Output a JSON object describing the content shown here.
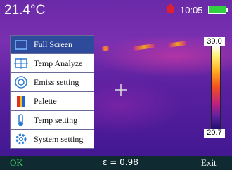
{
  "status_bar": {
    "temperature": "21.4°C",
    "time": "10:05"
  },
  "menu": {
    "items": [
      "Full Screen",
      "Temp Analyze",
      "Emiss setting",
      "Palette",
      "Temp setting",
      "System setting"
    ]
  },
  "scale": {
    "max": "39.0",
    "min": "20.7"
  },
  "bottom_bar": {
    "left": "OK",
    "center": "ε = 0.98",
    "right": "Exit"
  }
}
